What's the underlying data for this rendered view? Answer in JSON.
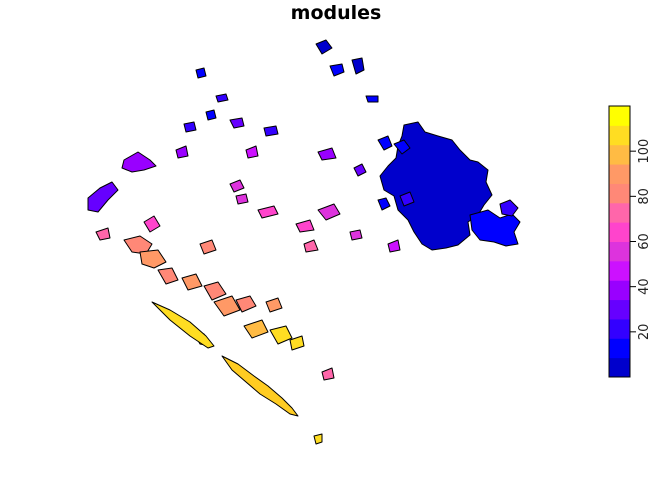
{
  "title": "modules",
  "legend": {
    "ticks": [
      "20",
      "40",
      "60",
      "80",
      "100"
    ],
    "tick_values": [
      20,
      40,
      60,
      80,
      100
    ],
    "range": [
      0,
      120
    ],
    "colors": [
      "#0000CC",
      "#0000FF",
      "#3300FF",
      "#6600FF",
      "#9900FF",
      "#CC11FF",
      "#DD33DD",
      "#FF44CC",
      "#FF66AA",
      "#FF8877",
      "#FF9966",
      "#FFBB44",
      "#FFDD22",
      "#FFFF00"
    ]
  }
}
